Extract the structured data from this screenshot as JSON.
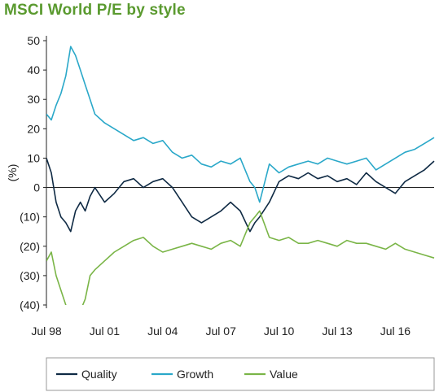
{
  "chart_data": {
    "type": "line",
    "title": "MSCI World P/E by style",
    "xlabel": "",
    "ylabel": "(%)",
    "ylim": [
      -40,
      50
    ],
    "xlim": [
      1998.5,
      2018.5
    ],
    "yticks": [
      50,
      40,
      30,
      20,
      10,
      0,
      -10,
      -20,
      -30,
      -40
    ],
    "ytick_labels": [
      "50",
      "40",
      "30",
      "20",
      "10",
      "0",
      "(10)",
      "(20)",
      "(30)",
      "(40)"
    ],
    "xtick_labels": [
      "Jul 98",
      "Jul 01",
      "Jul 04",
      "Jul 07",
      "Jul 10",
      "Jul 13",
      "Jul 16"
    ],
    "xticks": [
      1998.5,
      2001.5,
      2004.5,
      2007.5,
      2010.5,
      2013.5,
      2016.5
    ],
    "legend_position": "bottom",
    "zero_line": true,
    "colors": {
      "title": "#5a9a2f",
      "axis": "#222222",
      "quality": "#0f2a44",
      "growth": "#2aa8c9",
      "value": "#7ab547"
    },
    "x": [
      1998.5,
      1998.75,
      1999.0,
      1999.25,
      1999.5,
      1999.75,
      2000.0,
      2000.25,
      2000.5,
      2000.75,
      2001.0,
      2001.5,
      2002.0,
      2002.5,
      2003.0,
      2003.5,
      2004.0,
      2004.5,
      2005.0,
      2005.5,
      2006.0,
      2006.5,
      2007.0,
      2007.5,
      2008.0,
      2008.5,
      2009.0,
      2009.25,
      2009.5,
      2010.0,
      2010.5,
      2011.0,
      2011.5,
      2012.0,
      2012.5,
      2013.0,
      2013.5,
      2014.0,
      2014.5,
      2015.0,
      2015.5,
      2016.0,
      2016.5,
      2017.0,
      2017.5,
      2018.0,
      2018.5
    ],
    "series": [
      {
        "name": "Quality",
        "color": "#0f2a44",
        "values": [
          10,
          5,
          -5,
          -10,
          -12,
          -15,
          -8,
          -5,
          -8,
          -3,
          0,
          -5,
          -2,
          2,
          3,
          0,
          2,
          3,
          0,
          -5,
          -10,
          -12,
          -10,
          -8,
          -5,
          -8,
          -15,
          -12,
          -10,
          -5,
          2,
          4,
          3,
          5,
          3,
          4,
          2,
          3,
          1,
          5,
          2,
          0,
          -2,
          2,
          4,
          6,
          9
        ]
      },
      {
        "name": "Growth",
        "color": "#2aa8c9",
        "values": [
          25,
          23,
          28,
          32,
          38,
          48,
          45,
          40,
          35,
          30,
          25,
          22,
          20,
          18,
          16,
          17,
          15,
          16,
          12,
          10,
          11,
          8,
          7,
          9,
          8,
          10,
          2,
          0,
          -5,
          8,
          5,
          7,
          8,
          9,
          8,
          10,
          9,
          8,
          9,
          10,
          6,
          8,
          10,
          12,
          13,
          15,
          17
        ]
      },
      {
        "name": "Value",
        "color": "#7ab547",
        "values": [
          -25,
          -22,
          -30,
          -35,
          -40,
          -45,
          -45,
          -42,
          -38,
          -30,
          -28,
          -25,
          -22,
          -20,
          -18,
          -17,
          -20,
          -22,
          -21,
          -20,
          -19,
          -20,
          -21,
          -19,
          -18,
          -20,
          -12,
          -10,
          -8,
          -17,
          -18,
          -17,
          -19,
          -19,
          -18,
          -19,
          -20,
          -18,
          -19,
          -19,
          -20,
          -21,
          -19,
          -21,
          -22,
          -23,
          -24
        ]
      }
    ]
  }
}
